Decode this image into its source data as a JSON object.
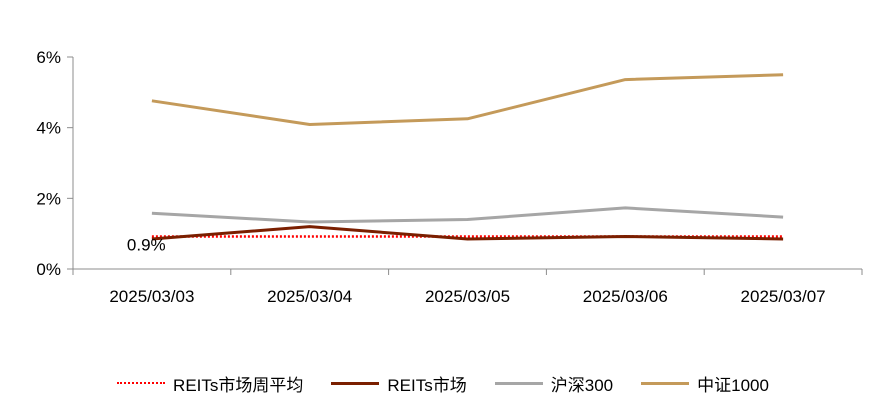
{
  "chart_data": {
    "type": "line",
    "categories": [
      "2025/03/03",
      "2025/03/04",
      "2025/03/05",
      "2025/03/06",
      "2025/03/07"
    ],
    "ylim": [
      0,
      6
    ],
    "yticks": [
      0,
      2,
      4,
      6
    ],
    "ytick_labels": [
      "0%",
      "2%",
      "4%",
      "6%"
    ],
    "grid": false,
    "legend_position": "bottom",
    "series": [
      {
        "name": "REITs市场周平均",
        "values": [
          0.92,
          0.92,
          0.92,
          0.92,
          0.92
        ],
        "color": "#ff0000",
        "style": "dotted"
      },
      {
        "name": "REITs市场",
        "values": [
          0.85,
          1.2,
          0.85,
          0.92,
          0.85
        ],
        "color": "#7a1f00",
        "style": "solid"
      },
      {
        "name": "沪深300",
        "values": [
          1.58,
          1.33,
          1.4,
          1.73,
          1.47
        ],
        "color": "#a6a6a6",
        "style": "solid"
      },
      {
        "name": "中证1000",
        "values": [
          4.76,
          4.09,
          4.25,
          5.36,
          5.5
        ],
        "color": "#c49a5a",
        "style": "solid"
      }
    ],
    "annotations": [
      {
        "text": "0.9%",
        "category": "2025/03/03",
        "value": 0.92
      }
    ]
  }
}
